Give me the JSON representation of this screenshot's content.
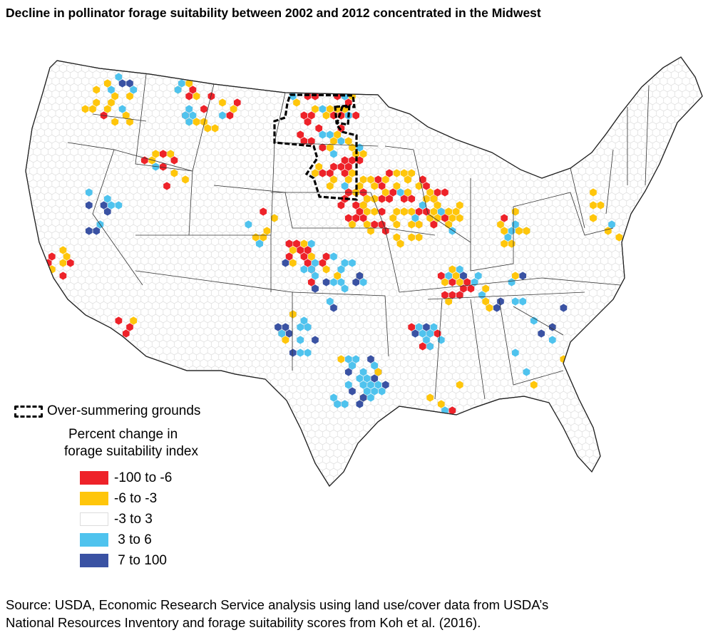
{
  "title": "Decline in pollinator forage suitability between 2002 and 2012 concentrated in the Midwest",
  "legend": {
    "boundary_label": "Over-summering grounds",
    "title_line1": "Percent change in",
    "title_line2": "forage suitability index",
    "items": [
      {
        "label": "-100 to -6",
        "color": "#ee2229"
      },
      {
        "label": "-6 to -3",
        "color": "#ffc60b"
      },
      {
        "label": "-3 to 3",
        "color": "#ffffff"
      },
      {
        "label": " 3 to 6",
        "color": "#4fc3ee"
      },
      {
        "label": " 7 to 100",
        "color": "#3a52a3"
      }
    ]
  },
  "source_line1": "Source: USDA, Economic Research Service analysis using land use/cover data from USDA’s",
  "source_line2": "National Resources Inventory and forage suitability scores from Koh et al. (2016)."
}
